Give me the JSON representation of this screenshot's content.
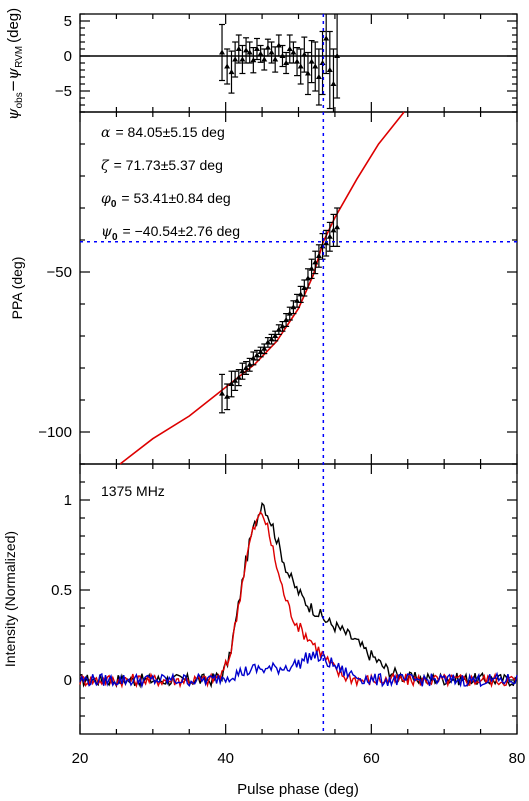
{
  "chart_data": [
    {
      "panel": "residuals",
      "type": "scatter",
      "ylabel_main": "ψ",
      "ylabel_sub1": "obs",
      "ylabel_mid": "−ψ",
      "ylabel_sub2": "RVM",
      "ylabel_unit": "(deg)",
      "xlim": [
        20,
        80
      ],
      "ylim": [
        -8,
        6
      ],
      "yticks": [
        5,
        0,
        -5
      ],
      "ytick_labels": [
        "5",
        "0",
        "−5"
      ],
      "zero_line": true,
      "points": [
        {
          "x": 39.5,
          "y": 0.5,
          "err": 4.0
        },
        {
          "x": 40.2,
          "y": -1.5,
          "err": 2.5
        },
        {
          "x": 40.8,
          "y": -2.3,
          "err": 3.0
        },
        {
          "x": 41.3,
          "y": -0.5,
          "err": 2.5
        },
        {
          "x": 41.8,
          "y": 1.0,
          "err": 2.0
        },
        {
          "x": 42.3,
          "y": -0.5,
          "err": 2.0
        },
        {
          "x": 42.8,
          "y": 0.8,
          "err": 1.8
        },
        {
          "x": 43.3,
          "y": 0.5,
          "err": 1.5
        },
        {
          "x": 43.8,
          "y": -0.6,
          "err": 1.8
        },
        {
          "x": 44.3,
          "y": 1.0,
          "err": 1.5
        },
        {
          "x": 44.8,
          "y": 0.3,
          "err": 1.2
        },
        {
          "x": 45.3,
          "y": -0.5,
          "err": 1.5
        },
        {
          "x": 45.8,
          "y": 1.2,
          "err": 1.2
        },
        {
          "x": 46.3,
          "y": 0.5,
          "err": 1.5
        },
        {
          "x": 46.8,
          "y": -0.5,
          "err": 1.8
        },
        {
          "x": 47.3,
          "y": 1.5,
          "err": 1.5
        },
        {
          "x": 47.8,
          "y": 0.0,
          "err": 1.5
        },
        {
          "x": 48.3,
          "y": -1.0,
          "err": 1.5
        },
        {
          "x": 48.8,
          "y": 1.0,
          "err": 2.0
        },
        {
          "x": 49.3,
          "y": 0.5,
          "err": 1.5
        },
        {
          "x": 49.8,
          "y": -0.8,
          "err": 2.0
        },
        {
          "x": 50.3,
          "y": -1.5,
          "err": 2.5
        },
        {
          "x": 50.8,
          "y": 0.2,
          "err": 2.5
        },
        {
          "x": 51.3,
          "y": -2.5,
          "err": 3.0
        },
        {
          "x": 51.8,
          "y": -0.8,
          "err": 3.0
        },
        {
          "x": 52.3,
          "y": -1.5,
          "err": 3.5
        },
        {
          "x": 52.8,
          "y": -3.0,
          "err": 4.0
        },
        {
          "x": 53.3,
          "y": -1.0,
          "err": 4.5
        },
        {
          "x": 53.8,
          "y": 2.5,
          "err": 5.0
        },
        {
          "x": 54.3,
          "y": -2.0,
          "err": 5.5
        },
        {
          "x": 54.8,
          "y": -4.0,
          "err": 5.0
        },
        {
          "x": 55.3,
          "y": 0.0,
          "err": 6.0
        }
      ]
    },
    {
      "panel": "ppa",
      "type": "scatter",
      "ylabel": "PPA (deg)",
      "xlim": [
        20,
        80
      ],
      "ylim": [
        -110,
        0
      ],
      "yticks": [
        -50,
        -100
      ],
      "ytick_labels": [
        "−50",
        "−100"
      ],
      "fit_params": {
        "alpha_sym": "α",
        "alpha_text": "= 84.05±5.15 deg",
        "zeta_sym": "ζ",
        "zeta_text": "= 71.73±5.37 deg",
        "phi0_sym": "φ",
        "phi0_sub": "0",
        "phi0_text": "= 53.41±0.84 deg",
        "psi0_sym": "ψ",
        "psi0_sub": "0",
        "psi0_text": "= −40.54±2.76 deg"
      },
      "fit_curve": {
        "x": [
          25.5,
          30,
          35,
          40,
          44,
          47,
          50,
          52,
          53.41,
          55,
          58,
          61,
          64.5
        ],
        "y": [
          -110,
          -102.1,
          -95,
          -86,
          -78.8,
          -71.7,
          -61.4,
          -51.1,
          -40.54,
          -33,
          -21,
          -10,
          0
        ]
      },
      "points": [
        {
          "x": 39.5,
          "y": -88,
          "err": 6
        },
        {
          "x": 40.2,
          "y": -89,
          "err": 4
        },
        {
          "x": 40.8,
          "y": -85,
          "err": 4
        },
        {
          "x": 41.3,
          "y": -84,
          "err": 3
        },
        {
          "x": 41.8,
          "y": -83,
          "err": 2.5
        },
        {
          "x": 42.3,
          "y": -81,
          "err": 2.5
        },
        {
          "x": 42.8,
          "y": -80,
          "err": 2
        },
        {
          "x": 43.3,
          "y": -79,
          "err": 2
        },
        {
          "x": 43.8,
          "y": -77,
          "err": 2
        },
        {
          "x": 44.3,
          "y": -76,
          "err": 1.5
        },
        {
          "x": 44.8,
          "y": -75,
          "err": 1.5
        },
        {
          "x": 45.3,
          "y": -74,
          "err": 1.5
        },
        {
          "x": 45.8,
          "y": -72,
          "err": 1.5
        },
        {
          "x": 46.3,
          "y": -71,
          "err": 1.5
        },
        {
          "x": 46.8,
          "y": -70,
          "err": 1.5
        },
        {
          "x": 47.3,
          "y": -68,
          "err": 1.5
        },
        {
          "x": 47.8,
          "y": -67,
          "err": 1.5
        },
        {
          "x": 48.3,
          "y": -65,
          "err": 2
        },
        {
          "x": 48.8,
          "y": -63,
          "err": 2
        },
        {
          "x": 49.3,
          "y": -61,
          "err": 2
        },
        {
          "x": 49.8,
          "y": -59,
          "err": 2
        },
        {
          "x": 50.3,
          "y": -57,
          "err": 2.5
        },
        {
          "x": 50.8,
          "y": -55,
          "err": 2.5
        },
        {
          "x": 51.3,
          "y": -52,
          "err": 3
        },
        {
          "x": 51.8,
          "y": -49,
          "err": 3
        },
        {
          "x": 52.3,
          "y": -47,
          "err": 3.5
        },
        {
          "x": 52.8,
          "y": -45,
          "err": 3.5
        },
        {
          "x": 53.3,
          "y": -42,
          "err": 4
        },
        {
          "x": 53.8,
          "y": -41,
          "err": 4
        },
        {
          "x": 54.3,
          "y": -39,
          "err": 4.5
        },
        {
          "x": 54.8,
          "y": -37,
          "err": 5
        },
        {
          "x": 55.3,
          "y": -36,
          "err": 6
        }
      ]
    },
    {
      "panel": "profile",
      "type": "line",
      "label": "1375 MHz",
      "ylabel": "Intensity (Normalized)",
      "xlabel": "Pulse phase (deg)",
      "xlim": [
        20,
        80
      ],
      "ylim": [
        -0.3,
        1.2
      ],
      "xticks": [
        20,
        40,
        60,
        80
      ],
      "yticks": [
        0,
        0.5,
        1
      ],
      "ytick_labels": [
        "0",
        "0.5",
        "1"
      ],
      "series": [
        {
          "color": "#000000",
          "x": [
            20,
            38,
            39.5,
            40.5,
            41.5,
            42.5,
            43.5,
            44.5,
            45,
            45.5,
            46.5,
            47.5,
            48.5,
            49.5,
            50.5,
            51.5,
            52.5,
            53.5,
            54.5,
            55.5,
            56.5,
            57.5,
            58.5,
            59.5,
            60.5,
            61.5,
            62.5,
            63.5,
            65,
            80
          ],
          "y": [
            0,
            0,
            0.03,
            0.12,
            0.35,
            0.6,
            0.8,
            0.92,
            1.0,
            0.95,
            0.85,
            0.72,
            0.6,
            0.52,
            0.46,
            0.41,
            0.38,
            0.34,
            0.31,
            0.29,
            0.26,
            0.23,
            0.19,
            0.15,
            0.12,
            0.08,
            0.05,
            0.03,
            0.01,
            0
          ]
        },
        {
          "color": "#dd0000",
          "x": [
            20,
            38,
            39.5,
            40.5,
            41.5,
            42.5,
            43.5,
            44.5,
            45,
            45.5,
            46.5,
            47.5,
            48.5,
            49.5,
            50.5,
            51.5,
            52.5,
            53.5,
            54.5,
            55.5,
            56.5,
            57.5,
            58.5,
            60,
            80
          ],
          "y": [
            0,
            0,
            0.03,
            0.12,
            0.35,
            0.6,
            0.8,
            0.9,
            0.93,
            0.88,
            0.72,
            0.55,
            0.42,
            0.33,
            0.27,
            0.23,
            0.18,
            0.13,
            0.08,
            0.04,
            0.02,
            0.01,
            0,
            0,
            0
          ]
        },
        {
          "color": "#0000cc",
          "x": [
            20,
            38,
            40,
            42,
            44,
            46,
            48,
            50,
            51,
            52,
            53,
            54,
            55,
            56,
            58,
            60,
            80
          ],
          "y": [
            0,
            0,
            0.02,
            0.04,
            0.06,
            0.06,
            0.07,
            0.09,
            0.12,
            0.14,
            0.12,
            0.1,
            0.08,
            0.05,
            0.02,
            0,
            0
          ]
        }
      ]
    }
  ],
  "markers": {
    "phase_line_x": 53.41,
    "ppa_line_y": -40.54,
    "color": "#0000ff"
  }
}
